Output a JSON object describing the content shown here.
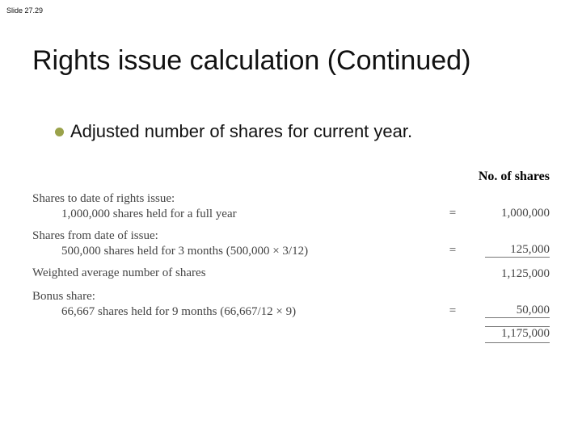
{
  "slideNumber": "Slide 27.29",
  "title": "Rights issue calculation (Continued)",
  "bullet": "Adjusted number of shares for current year.",
  "columnHeader": "No. of shares",
  "rows": [
    {
      "header": "Shares to date of rights issue:",
      "detail": "1,000,000 shares held for a full year",
      "eq": "=",
      "value": "1,000,000"
    },
    {
      "header": "Shares from date of issue:",
      "detail": "500,000 shares held for 3 months (500,000 × 3/12)",
      "eq": "=",
      "value": "125,000"
    },
    {
      "header": "Weighted average number of shares",
      "detail": "",
      "eq": "",
      "value": "1,125,000"
    },
    {
      "header": "Bonus share:",
      "detail": "66,667 shares held for 9 months (66,667/12 × 9)",
      "eq": "=",
      "value": "50,000"
    },
    {
      "header": "",
      "detail": "",
      "eq": "",
      "value": "1,175,000"
    }
  ],
  "colors": {
    "bullet": "#9aa24a",
    "text": "#111111",
    "calcText": "#444444",
    "background": "#ffffff"
  },
  "typography": {
    "titleSize": 34,
    "bulletSize": 22,
    "calcSize": 15,
    "calcFamily": "Times New Roman",
    "bodyFamily": "Arial"
  }
}
